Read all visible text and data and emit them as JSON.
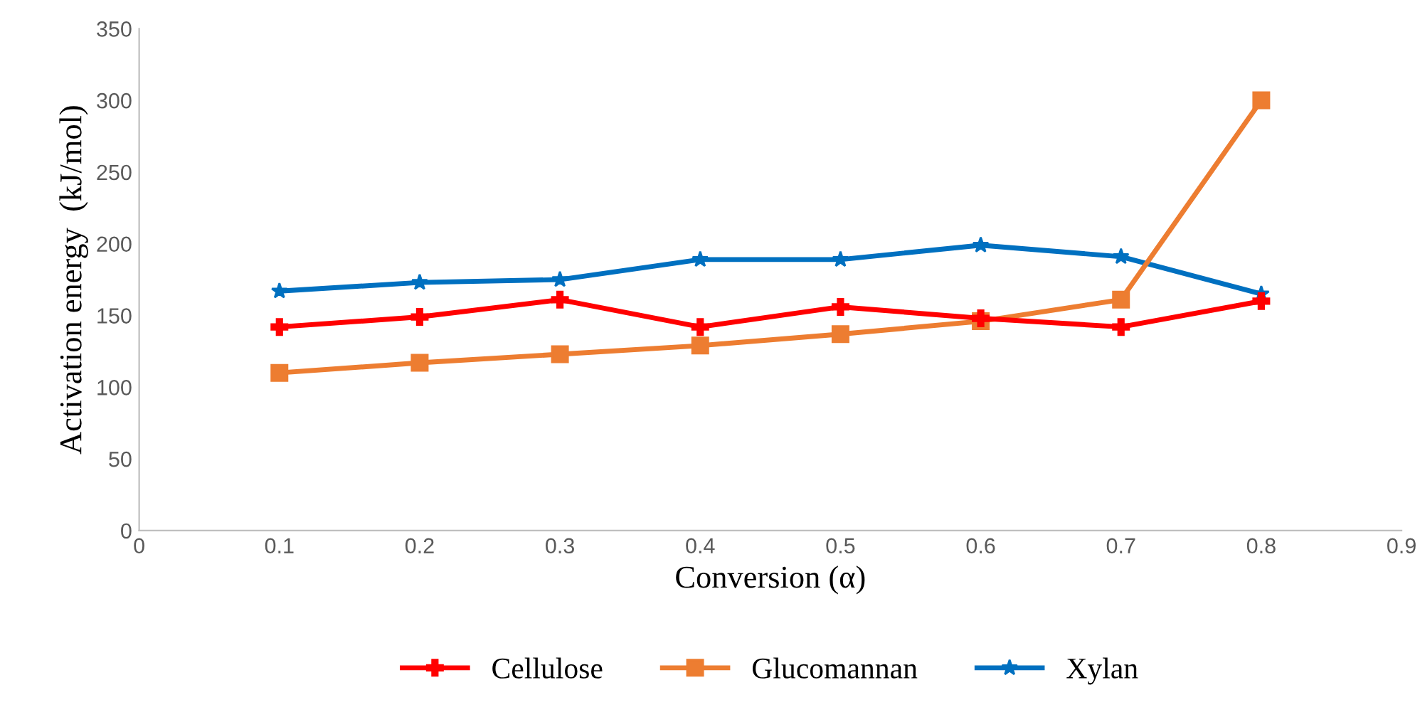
{
  "chart_data": {
    "type": "line",
    "xlabel": "Conversion (α)",
    "ylabel": "Activation energy  (kJ/mol)",
    "x": [
      0.1,
      0.2,
      0.3,
      0.4,
      0.5,
      0.6,
      0.7,
      0.8
    ],
    "series": [
      {
        "name": "Cellulose",
        "color": "#ff0000",
        "marker": "cross",
        "values": [
          142,
          149,
          161,
          142,
          156,
          148,
          142,
          160
        ]
      },
      {
        "name": "Glucomannan",
        "color": "#ed7d31",
        "marker": "square",
        "values": [
          110,
          117,
          123,
          129,
          137,
          146,
          161,
          300
        ]
      },
      {
        "name": "Xylan",
        "color": "#0070c0",
        "marker": "star",
        "values": [
          167,
          173,
          175,
          189,
          189,
          199,
          191,
          165
        ]
      }
    ],
    "xlim": [
      0,
      0.9
    ],
    "xticks": [
      0,
      0.1,
      0.2,
      0.3,
      0.4,
      0.5,
      0.6,
      0.7,
      0.8,
      0.9
    ],
    "ylim": [
      0,
      350
    ],
    "yticks": [
      0,
      50,
      100,
      150,
      200,
      250,
      300,
      350
    ],
    "grid": false,
    "legend": "bottom",
    "line_style": "solid"
  }
}
